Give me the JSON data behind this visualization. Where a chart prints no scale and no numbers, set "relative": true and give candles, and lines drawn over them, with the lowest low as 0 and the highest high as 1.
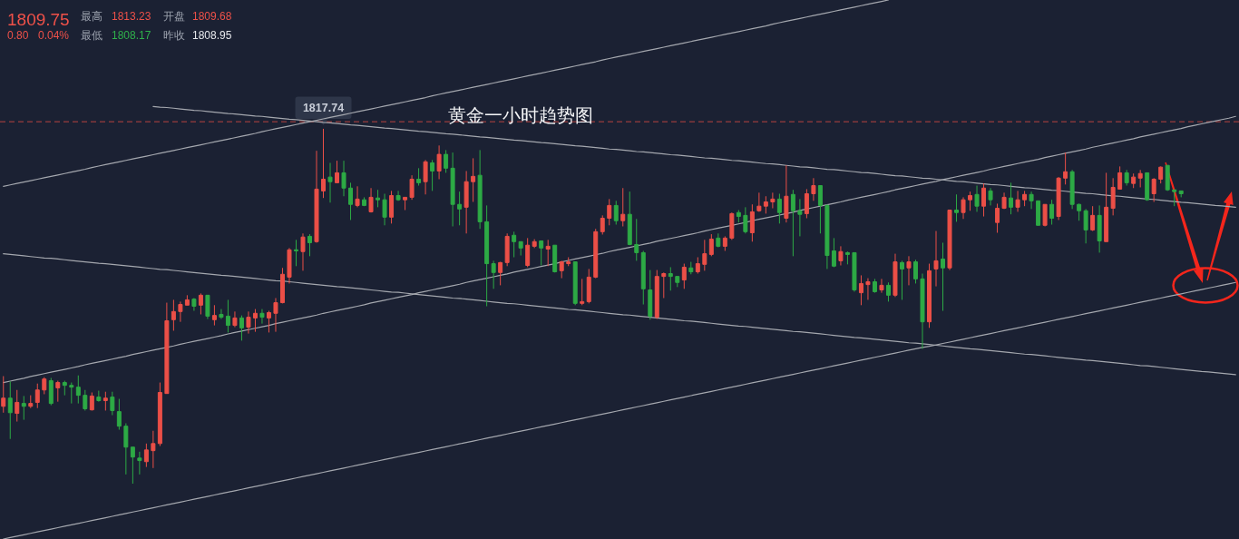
{
  "chart_data": {
    "type": "candlestick",
    "relative": true,
    "title": "黄金一小时趋势图",
    "categories": [
      null,
      null,
      null,
      null,
      null,
      null,
      null,
      null,
      null,
      null,
      null,
      null,
      null,
      null,
      null,
      null,
      null,
      null,
      null,
      null,
      null,
      null,
      null,
      null,
      null,
      null,
      null,
      null,
      null,
      null,
      null,
      null,
      null,
      null,
      null,
      null,
      null,
      null,
      null,
      null,
      null,
      null,
      null,
      null,
      null,
      null,
      null,
      null,
      null,
      null,
      null,
      null,
      null,
      null,
      null,
      null,
      null,
      null,
      null,
      null,
      null,
      null,
      null,
      null,
      null,
      null,
      null,
      null,
      null,
      null,
      null,
      null,
      null,
      null,
      null,
      null,
      null,
      null,
      null,
      null,
      null,
      null,
      null,
      null,
      null,
      null,
      null,
      null,
      null,
      null,
      null,
      null,
      null,
      null,
      null,
      null,
      null,
      null,
      null,
      null,
      null,
      null,
      null,
      null,
      null,
      null,
      null,
      null,
      null,
      null,
      null,
      null,
      null,
      null,
      null,
      null,
      null,
      null,
      null,
      null,
      null,
      null,
      null,
      null,
      null,
      null,
      null,
      null,
      null,
      null,
      null,
      null,
      null,
      null,
      null,
      null,
      null,
      null,
      null,
      null,
      null,
      null,
      null,
      null,
      null,
      null,
      null,
      null,
      null,
      null,
      null,
      null,
      null,
      null,
      null,
      null,
      null,
      null,
      null,
      null,
      null,
      null,
      null,
      null,
      null,
      null,
      null,
      null,
      null,
      null,
      null,
      null,
      null,
      null,
      null,
      null,
      null,
      null,
      null,
      null,
      null,
      null
    ],
    "ohlc": [
      [
        0.218,
        0.303,
        0.2,
        0.241
      ],
      [
        0.241,
        0.288,
        0.126,
        0.2
      ],
      [
        0.198,
        0.264,
        0.175,
        0.229
      ],
      [
        0.226,
        0.247,
        0.18,
        0.218
      ],
      [
        0.218,
        0.249,
        0.213,
        0.226
      ],
      [
        0.229,
        0.282,
        0.213,
        0.264
      ],
      [
        0.264,
        0.3,
        0.252,
        0.295
      ],
      [
        0.29,
        0.298,
        0.221,
        0.226
      ],
      [
        0.27,
        0.29,
        0.231,
        0.285
      ],
      [
        0.285,
        0.29,
        0.249,
        0.277
      ],
      [
        0.277,
        0.285,
        0.226,
        0.272
      ],
      [
        0.272,
        0.305,
        0.226,
        0.249
      ],
      [
        0.249,
        0.264,
        0.206,
        0.211
      ],
      [
        0.208,
        0.257,
        0.206,
        0.247
      ],
      [
        0.244,
        0.262,
        0.231,
        0.234
      ],
      [
        0.234,
        0.259,
        0.206,
        0.241
      ],
      [
        0.244,
        0.259,
        0.193,
        0.206
      ],
      [
        0.203,
        0.239,
        0.152,
        0.162
      ],
      [
        0.162,
        0.17,
        0.026,
        0.103
      ],
      [
        0.103,
        0.103,
        0,
        0.075
      ],
      [
        0.072,
        0.09,
        0.026,
        0.065
      ],
      [
        0.062,
        0.113,
        0.047,
        0.095
      ],
      [
        0.093,
        0.149,
        0.044,
        0.113
      ],
      [
        0.113,
        0.285,
        0.106,
        0.257
      ],
      [
        0.254,
        0.51,
        0.254,
        0.459
      ],
      [
        0.462,
        0.518,
        0.431,
        0.485
      ],
      [
        0.485,
        0.513,
        0.456,
        0.505
      ],
      [
        0.503,
        0.531,
        0.503,
        0.518
      ],
      [
        0.52,
        0.523,
        0.487,
        0.5
      ],
      [
        0.503,
        0.536,
        0.477,
        0.531
      ],
      [
        0.531,
        0.531,
        0.464,
        0.472
      ],
      [
        0.462,
        0.503,
        0.446,
        0.474
      ],
      [
        0.477,
        0.492,
        0.464,
        0.469
      ],
      [
        0.472,
        0.518,
        0.426,
        0.446
      ],
      [
        0.446,
        0.485,
        0.441,
        0.467
      ],
      [
        0.467,
        0.474,
        0.403,
        0.439
      ],
      [
        0.441,
        0.485,
        0.423,
        0.469
      ],
      [
        0.467,
        0.492,
        0.428,
        0.48
      ],
      [
        0.48,
        0.492,
        0.451,
        0.469
      ],
      [
        0.467,
        0.487,
        0.426,
        0.482
      ],
      [
        0.48,
        0.523,
        0.428,
        0.51
      ],
      [
        0.51,
        0.608,
        0.508,
        0.59
      ],
      [
        0.582,
        0.664,
        0.564,
        0.659
      ],
      [
        0.659,
        0.687,
        0.613,
        0.656
      ],
      [
        0.654,
        0.705,
        0.6,
        0.695
      ],
      [
        0.697,
        0.703,
        0.641,
        0.679
      ],
      [
        0.682,
        0.938,
        0.679,
        0.83
      ],
      [
        0.825,
        1,
        0.805,
        0.858
      ],
      [
        0.864,
        0.904,
        0.792,
        0.851
      ],
      [
        0.848,
        0.91,
        0.848,
        0.876
      ],
      [
        0.876,
        0.91,
        0.81,
        0.833
      ],
      [
        0.833,
        0.848,
        0.743,
        0.787
      ],
      [
        0.784,
        0.838,
        0.779,
        0.802
      ],
      [
        0.8,
        0.807,
        0.782,
        0.784
      ],
      [
        0.766,
        0.833,
        0.764,
        0.807
      ],
      [
        0.805,
        0.828,
        0.779,
        0.8
      ],
      [
        0.8,
        0.817,
        0.728,
        0.751
      ],
      [
        0.751,
        0.825,
        0.733,
        0.812
      ],
      [
        0.812,
        0.825,
        0.797,
        0.8
      ],
      [
        0.8,
        0.807,
        0.771,
        0.807
      ],
      [
        0.807,
        0.869,
        0.8,
        0.858
      ],
      [
        0.858,
        0.889,
        0.84,
        0.848
      ],
      [
        0.851,
        0.912,
        0.815,
        0.907
      ],
      [
        0.904,
        0.912,
        0.825,
        0.881
      ],
      [
        0.881,
        0.953,
        0.858,
        0.928
      ],
      [
        0.928,
        0.94,
        0.876,
        0.889
      ],
      [
        0.889,
        0.933,
        0.725,
        0.787
      ],
      [
        0.787,
        0.823,
        0.728,
        0.774
      ],
      [
        0.779,
        0.881,
        0.705,
        0.851
      ],
      [
        0.851,
        0.917,
        0.794,
        0.866
      ],
      [
        0.869,
        0.94,
        0.718,
        0.738
      ],
      [
        0.738,
        0.784,
        0.5,
        0.62
      ],
      [
        0.62,
        0.628,
        0.549,
        0.595
      ],
      [
        0.595,
        0.625,
        0.559,
        0.623
      ],
      [
        0.623,
        0.705,
        0.613,
        0.697
      ],
      [
        0.7,
        0.71,
        0.638,
        0.682
      ],
      [
        0.682,
        0.682,
        0.643,
        0.664
      ],
      [
        0.615,
        0.692,
        0.61,
        0.672
      ],
      [
        0.669,
        0.689,
        0.664,
        0.682
      ],
      [
        0.684,
        0.684,
        0.615,
        0.664
      ],
      [
        0.661,
        0.687,
        0.613,
        0.669
      ],
      [
        0.672,
        0.672,
        0.595,
        0.597
      ],
      [
        0.6,
        0.628,
        0.579,
        0.625
      ],
      [
        0.62,
        0.638,
        0.613,
        0.625
      ],
      [
        0.625,
        0.625,
        0.503,
        0.508
      ],
      [
        0.508,
        0.577,
        0.503,
        0.513
      ],
      [
        0.513,
        0.605,
        0.508,
        0.582
      ],
      [
        0.582,
        0.718,
        0.579,
        0.71
      ],
      [
        0.71,
        0.756,
        0.702,
        0.748
      ],
      [
        0.748,
        0.802,
        0.728,
        0.784
      ],
      [
        0.784,
        0.797,
        0.73,
        0.741
      ],
      [
        0.741,
        0.833,
        0.725,
        0.759
      ],
      [
        0.759,
        0.823,
        0.672,
        0.674
      ],
      [
        0.674,
        0.746,
        0.628,
        0.651
      ],
      [
        0.651,
        0.656,
        0.505,
        0.549
      ],
      [
        0.546,
        0.602,
        0.462,
        0.472
      ],
      [
        0.469,
        0.602,
        0.464,
        0.584
      ],
      [
        0.584,
        0.595,
        0.523,
        0.592
      ],
      [
        0.592,
        0.61,
        0.544,
        0.584
      ],
      [
        0.584,
        0.584,
        0.554,
        0.567
      ],
      [
        0.574,
        0.62,
        0.549,
        0.61
      ],
      [
        0.608,
        0.625,
        0.59,
        0.597
      ],
      [
        0.597,
        0.638,
        0.592,
        0.62
      ],
      [
        0.618,
        0.687,
        0.6,
        0.648
      ],
      [
        0.646,
        0.703,
        0.641,
        0.689
      ],
      [
        0.692,
        0.705,
        0.666,
        0.669
      ],
      [
        0.669,
        0.697,
        0.656,
        0.692
      ],
      [
        0.692,
        0.764,
        0.687,
        0.761
      ],
      [
        0.764,
        0.771,
        0.736,
        0.753
      ],
      [
        0.756,
        0.779,
        0.705,
        0.71
      ],
      [
        0.707,
        0.787,
        0.682,
        0.766
      ],
      [
        0.769,
        0.82,
        0.766,
        0.782
      ],
      [
        0.782,
        0.81,
        0.761,
        0.794
      ],
      [
        0.794,
        0.82,
        0.776,
        0.802
      ],
      [
        0.802,
        0.817,
        0.733,
        0.764
      ],
      [
        0.748,
        0.897,
        0.736,
        0.81
      ],
      [
        0.815,
        0.828,
        0.641,
        0.769
      ],
      [
        0.769,
        0.802,
        0.697,
        0.759
      ],
      [
        0.761,
        0.83,
        0.748,
        0.817
      ],
      [
        0.817,
        0.861,
        0.797,
        0.84
      ],
      [
        0.84,
        0.84,
        0.705,
        0.784
      ],
      [
        0.784,
        0.787,
        0.605,
        0.643
      ],
      [
        0.656,
        0.692,
        0.61,
        0.613
      ],
      [
        0.628,
        0.669,
        0.615,
        0.654
      ],
      [
        0.651,
        0.654,
        0.618,
        0.646
      ],
      [
        0.651,
        0.651,
        0.541,
        0.546
      ],
      [
        0.538,
        0.587,
        0.503,
        0.564
      ],
      [
        0.561,
        0.579,
        0.518,
        0.569
      ],
      [
        0.569,
        0.577,
        0.538,
        0.541
      ],
      [
        0.546,
        0.577,
        0.538,
        0.559
      ],
      [
        0.559,
        0.567,
        0.513,
        0.531
      ],
      [
        0.531,
        0.648,
        0.526,
        0.625
      ],
      [
        0.623,
        0.628,
        0.518,
        0.605
      ],
      [
        0.608,
        0.641,
        0.559,
        0.625
      ],
      [
        0.625,
        0.631,
        0.564,
        0.577
      ],
      [
        0.577,
        0.592,
        0.38,
        0.456
      ],
      [
        0.456,
        0.62,
        0.439,
        0.6
      ],
      [
        0.605,
        0.712,
        0.556,
        0.628
      ],
      [
        0.633,
        0.679,
        0.487,
        0.608
      ],
      [
        0.608,
        0.771,
        0.602,
        0.771
      ],
      [
        0.771,
        0.815,
        0.738,
        0.764
      ],
      [
        0.764,
        0.807,
        0.746,
        0.8
      ],
      [
        0.8,
        0.823,
        0.769,
        0.812
      ],
      [
        0.815,
        0.84,
        0.766,
        0.782
      ],
      [
        0.782,
        0.846,
        0.753,
        0.833
      ],
      [
        0.825,
        0.833,
        0.784,
        0.8
      ],
      [
        0.736,
        0.789,
        0.707,
        0.776
      ],
      [
        0.776,
        0.82,
        0.774,
        0.807
      ],
      [
        0.805,
        0.848,
        0.759,
        0.779
      ],
      [
        0.779,
        0.825,
        0.766,
        0.8
      ],
      [
        0.8,
        0.825,
        0.782,
        0.815
      ],
      [
        0.815,
        0.823,
        0.774,
        0.797
      ],
      [
        0.797,
        0.797,
        0.728,
        0.728
      ],
      [
        0.728,
        0.787,
        0.725,
        0.787
      ],
      [
        0.787,
        0.8,
        0.73,
        0.748
      ],
      [
        0.753,
        0.864,
        0.743,
        0.861
      ],
      [
        0.861,
        0.933,
        0.843,
        0.879
      ],
      [
        0.879,
        0.884,
        0.774,
        0.787
      ],
      [
        0.787,
        0.789,
        0.741,
        0.769
      ],
      [
        0.769,
        0.774,
        0.677,
        0.715
      ],
      [
        0.715,
        0.782,
        0.712,
        0.756
      ],
      [
        0.756,
        0.784,
        0.651,
        0.684
      ],
      [
        0.682,
        0.876,
        0.682,
        0.779
      ],
      [
        0.776,
        0.861,
        0.756,
        0.835
      ],
      [
        0.83,
        0.894,
        0.83,
        0.876
      ],
      [
        0.876,
        0.884,
        0.84,
        0.848
      ],
      [
        0.846,
        0.874,
        0.833,
        0.864
      ],
      [
        0.861,
        0.884,
        0.835,
        0.874
      ],
      [
        0.876,
        0.876,
        0.797,
        0.8
      ],
      [
        0.817,
        0.861,
        0.794,
        0.858
      ],
      [
        0.858,
        0.894,
        0.846,
        0.892
      ],
      [
        0.897,
        0.897,
        0.825,
        0.828
      ],
      [
        0.828,
        0.828,
        0.782,
        0.823
      ],
      [
        0.825,
        0.825,
        0.807,
        0.817
      ],
      null,
      null,
      null,
      null,
      null,
      null,
      null,
      null
    ],
    "colors": [
      "#eb4f47",
      "#2daa45",
      "#eb4f47",
      "#2daa45",
      "#eb4f47",
      "#eb4f47",
      "#eb4f47",
      "#2daa45",
      "#eb4f47",
      "#2daa45",
      "#2daa45",
      "#2daa45",
      "#2daa45",
      "#eb4f47",
      "#2daa45",
      "#eb4f47",
      "#2daa45",
      "#2daa45",
      "#2daa45",
      "#2daa45",
      "#2daa45",
      "#eb4f47",
      "#eb4f47",
      "#eb4f47",
      "#eb4f47",
      "#eb4f47",
      "#eb4f47",
      "#eb4f47",
      "#2daa45",
      "#eb4f47",
      "#2daa45",
      "#eb4f47",
      "#2daa45",
      "#2daa45",
      "#eb4f47",
      "#2daa45",
      "#eb4f47",
      "#eb4f47",
      "#2daa45",
      "#eb4f47",
      "#eb4f47",
      "#eb4f47",
      "#eb4f47",
      "#2daa45",
      "#eb4f47",
      "#2daa45",
      "#eb4f47",
      "#eb4f47",
      "#2daa45",
      "#eb4f47",
      "#2daa45",
      "#2daa45",
      "#eb4f47",
      "#2daa45",
      "#eb4f47",
      "#2daa45",
      "#2daa45",
      "#eb4f47",
      "#2daa45",
      "#eb4f47",
      "#eb4f47",
      "#2daa45",
      "#eb4f47",
      "#2daa45",
      "#eb4f47",
      "#2daa45",
      "#2daa45",
      "#2daa45",
      "#eb4f47",
      "#eb4f47",
      "#2daa45",
      "#2daa45",
      "#2daa45",
      "#eb4f47",
      "#eb4f47",
      "#2daa45",
      "#2daa45",
      "#eb4f47",
      "#eb4f47",
      "#2daa45",
      "#eb4f47",
      "#2daa45",
      "#eb4f47",
      "#eb4f47",
      "#2daa45",
      "#eb4f47",
      "#eb4f47",
      "#eb4f47",
      "#eb4f47",
      "#eb4f47",
      "#2daa45",
      "#eb4f47",
      "#2daa45",
      "#2daa45",
      "#2daa45",
      "#2daa45",
      "#eb4f47",
      "#eb4f47",
      "#2daa45",
      "#2daa45",
      "#eb4f47",
      "#2daa45",
      "#eb4f47",
      "#eb4f47",
      "#eb4f47",
      "#2daa45",
      "#eb4f47",
      "#eb4f47",
      "#2daa45",
      "#2daa45",
      "#eb4f47",
      "#eb4f47",
      "#eb4f47",
      "#eb4f47",
      "#2daa45",
      "#eb4f47",
      "#2daa45",
      "#2daa45",
      "#eb4f47",
      "#eb4f47",
      "#2daa45",
      "#2daa45",
      "#2daa45",
      "#eb4f47",
      "#2daa45",
      "#2daa45",
      "#eb4f47",
      "#eb4f47",
      "#2daa45",
      "#eb4f47",
      "#2daa45",
      "#eb4f47",
      "#2daa45",
      "#eb4f47",
      "#2daa45",
      "#2daa45",
      "#eb4f47",
      "#eb4f47",
      "#2daa45",
      "#eb4f47",
      "#2daa45",
      "#eb4f47",
      "#eb4f47",
      "#2daa45",
      "#eb4f47",
      "#2daa45",
      "#eb4f47",
      "#eb4f47",
      "#2daa45",
      "#eb4f47",
      "#eb4f47",
      "#2daa45",
      "#2daa45",
      "#eb4f47",
      "#2daa45",
      "#eb4f47",
      "#eb4f47",
      "#2daa45",
      "#2daa45",
      "#2daa45",
      "#eb4f47",
      "#2daa45",
      "#eb4f47",
      "#eb4f47",
      "#eb4f47",
      "#2daa45",
      "#eb4f47",
      "#eb4f47",
      "#2daa45",
      "#eb4f47",
      "#eb4f47",
      "#2daa45",
      "#2daa45",
      "#2daa45",
      null,
      null,
      null,
      null,
      null,
      null,
      null,
      null
    ],
    "series": [
      {
        "type": "line",
        "color": "#a4a7ae",
        "values": [
          0.838,
          0.842,
          0.846,
          0.85,
          0.854,
          0.858,
          0.862,
          0.866,
          0.87,
          0.874,
          0.878,
          0.882,
          0.886,
          0.891,
          0.895,
          0.899,
          0.903,
          0.907,
          0.911,
          0.915,
          0.919,
          0.923,
          0.927,
          0.931,
          0.935,
          0.939,
          0.943,
          0.947,
          0.951,
          0.955,
          0.959,
          0.963,
          0.967,
          0.971,
          0.975,
          0.979,
          0.983,
          0.987,
          0.992,
          0.996,
          1.0,
          1.004,
          1.008,
          1.012,
          1.016,
          1.02,
          1.024,
          1.028,
          1.032,
          1.036,
          1.04,
          1.044,
          1.048,
          1.052,
          1.056,
          1.06,
          1.064,
          1.068,
          1.072,
          1.076,
          1.08,
          1.084,
          1.088,
          1.093,
          1.097,
          1.101,
          1.105,
          1.109,
          1.113,
          1.117,
          1.121,
          1.125,
          1.129,
          1.133,
          1.137,
          1.141,
          1.145,
          1.149,
          1.153,
          1.157,
          1.161,
          1.165,
          1.169,
          1.173,
          1.177,
          1.181,
          1.185,
          1.189,
          1.194,
          1.198,
          1.202,
          1.206,
          1.21,
          1.214,
          1.218,
          1.222,
          1.226,
          1.23,
          1.234,
          1.238,
          1.242,
          1.246,
          1.25,
          1.254,
          1.258,
          1.262,
          1.266,
          1.27,
          1.274,
          1.278,
          1.282,
          1.286,
          1.29,
          1.295,
          1.299,
          1.303,
          1.307,
          1.311,
          1.315,
          1.319,
          1.323,
          1.327,
          1.331,
          1.335,
          1.339,
          1.343,
          1.347,
          1.351,
          1.355,
          1.359,
          1.363,
          null,
          null,
          null,
          null,
          null,
          null,
          null,
          null,
          null,
          null,
          null,
          null,
          null,
          null,
          null,
          null,
          null,
          null,
          null,
          null,
          null,
          null,
          null,
          null,
          null,
          null,
          null,
          null,
          null,
          null,
          null,
          null,
          null,
          null,
          null,
          null,
          null,
          null,
          null,
          null,
          null,
          null,
          null,
          null,
          null,
          null,
          null,
          null,
          null,
          null,
          null
        ]
      },
      {
        "type": "line",
        "color": "#a4a7ae",
        "values": [
          null,
          null,
          null,
          null,
          null,
          null,
          null,
          null,
          null,
          null,
          null,
          null,
          null,
          null,
          null,
          null,
          null,
          null,
          null,
          null,
          null,
          null,
          1.063,
          1.061,
          1.06,
          1.058,
          1.056,
          1.054,
          1.052,
          1.051,
          1.049,
          1.047,
          1.045,
          1.043,
          1.042,
          1.04,
          1.038,
          1.036,
          1.035,
          1.033,
          1.031,
          1.029,
          1.027,
          1.026,
          1.024,
          1.022,
          1.02,
          1.018,
          1.017,
          1.015,
          1.013,
          1.011,
          1.01,
          1.008,
          1.006,
          1.004,
          1.002,
          1.001,
          0.999,
          0.997,
          0.995,
          0.993,
          0.992,
          0.99,
          0.988,
          0.986,
          0.985,
          0.983,
          0.981,
          0.979,
          0.977,
          0.976,
          0.974,
          0.972,
          0.97,
          0.968,
          0.967,
          0.965,
          0.963,
          0.961,
          0.96,
          0.958,
          0.956,
          0.954,
          0.952,
          0.951,
          0.949,
          0.947,
          0.945,
          0.943,
          0.942,
          0.94,
          0.938,
          0.936,
          0.935,
          0.933,
          0.931,
          0.929,
          0.927,
          0.926,
          0.924,
          0.922,
          0.92,
          0.918,
          0.917,
          0.915,
          0.913,
          0.911,
          0.91,
          0.908,
          0.906,
          0.904,
          0.902,
          0.901,
          0.899,
          0.897,
          0.895,
          0.893,
          0.892,
          0.89,
          0.888,
          0.886,
          0.885,
          0.883,
          0.881,
          0.879,
          0.877,
          0.876,
          0.874,
          0.872,
          0.87,
          0.868,
          0.867,
          0.865,
          0.863,
          0.861,
          0.86,
          0.858,
          0.856,
          0.854,
          0.852,
          0.851,
          0.849,
          0.847,
          0.845,
          0.843,
          0.842,
          0.84,
          0.838,
          0.836,
          0.834,
          0.833,
          0.831,
          0.829,
          0.827,
          0.826,
          0.824,
          0.822,
          0.82,
          0.818,
          0.817,
          0.815,
          0.813,
          0.811,
          0.81,
          0.808,
          0.806,
          0.804,
          0.802,
          0.801,
          0.799,
          0.797,
          0.795,
          0.793,
          0.792,
          0.79,
          0.788,
          0.786,
          0.784,
          0.783,
          0.781,
          0.779
        ]
      },
      {
        "type": "line",
        "color": "#a4a7ae",
        "values": [
          0.648,
          0.646,
          0.644,
          0.642,
          0.64,
          0.638,
          0.636,
          0.635,
          0.633,
          0.631,
          0.629,
          0.627,
          0.625,
          0.623,
          0.621,
          0.62,
          0.618,
          0.616,
          0.614,
          0.612,
          0.61,
          0.608,
          0.606,
          0.604,
          0.603,
          0.601,
          0.599,
          0.597,
          0.595,
          0.593,
          0.591,
          0.589,
          0.587,
          0.586,
          0.584,
          0.582,
          0.58,
          0.578,
          0.576,
          0.574,
          0.572,
          0.571,
          0.569,
          0.567,
          0.565,
          0.563,
          0.561,
          0.559,
          0.557,
          0.555,
          0.554,
          0.552,
          0.55,
          0.548,
          0.546,
          0.544,
          0.542,
          0.54,
          0.539,
          0.537,
          0.535,
          0.533,
          0.531,
          0.529,
          0.527,
          0.525,
          0.523,
          0.522,
          0.52,
          0.518,
          0.516,
          0.514,
          0.512,
          0.51,
          0.508,
          0.507,
          0.505,
          0.503,
          0.501,
          0.499,
          0.497,
          0.495,
          0.493,
          0.491,
          0.49,
          0.488,
          0.486,
          0.484,
          0.482,
          0.48,
          0.478,
          0.476,
          0.475,
          0.473,
          0.471,
          0.469,
          0.467,
          0.465,
          0.463,
          0.461,
          0.459,
          0.458,
          0.456,
          0.454,
          0.452,
          0.45,
          0.448,
          0.446,
          0.444,
          0.443,
          0.441,
          0.439,
          0.437,
          0.435,
          0.433,
          0.431,
          0.429,
          0.428,
          0.426,
          0.424,
          0.422,
          0.42,
          0.418,
          0.416,
          0.414,
          0.412,
          0.411,
          0.409,
          0.407,
          0.405,
          0.403,
          0.401,
          0.399,
          0.397,
          0.396,
          0.394,
          0.392,
          0.39,
          0.388,
          0.386,
          0.384,
          0.382,
          0.38,
          0.379,
          0.377,
          0.375,
          0.373,
          0.371,
          0.369,
          0.367,
          0.365,
          0.364,
          0.362,
          0.36,
          0.358,
          0.356,
          0.354,
          0.352,
          0.35,
          0.348,
          0.347,
          0.345,
          0.343,
          0.341,
          0.339,
          0.337,
          0.335,
          0.333,
          0.332,
          0.33,
          0.328,
          0.326,
          0.324,
          0.322,
          0.32,
          0.318,
          0.316,
          0.315,
          0.313,
          0.311,
          0.309,
          0.307
        ]
      },
      {
        "type": "line",
        "color": "#a4a7ae",
        "values": [
          0.285,
          0.289,
          0.293,
          0.297,
          0.302,
          0.306,
          0.31,
          0.314,
          0.318,
          0.322,
          0.326,
          0.33,
          0.335,
          0.339,
          0.343,
          0.347,
          0.351,
          0.355,
          0.359,
          0.364,
          0.368,
          0.372,
          0.376,
          0.38,
          0.384,
          0.388,
          0.393,
          0.397,
          0.401,
          0.405,
          0.409,
          0.413,
          0.417,
          0.422,
          0.426,
          0.43,
          0.434,
          0.438,
          0.442,
          0.446,
          0.451,
          0.455,
          0.459,
          0.463,
          0.467,
          0.471,
          0.475,
          0.48,
          0.484,
          0.488,
          0.492,
          0.496,
          0.5,
          0.504,
          0.509,
          0.513,
          0.517,
          0.521,
          0.525,
          0.529,
          0.533,
          0.538,
          0.542,
          0.546,
          0.55,
          0.554,
          0.558,
          0.562,
          0.567,
          0.571,
          0.575,
          0.579,
          0.583,
          0.587,
          0.591,
          0.596,
          0.6,
          0.604,
          0.608,
          0.612,
          0.616,
          0.62,
          0.625,
          0.629,
          0.633,
          0.637,
          0.641,
          0.645,
          0.649,
          0.654,
          0.658,
          0.662,
          0.666,
          0.67,
          0.674,
          0.678,
          0.683,
          0.687,
          0.691,
          0.695,
          0.699,
          0.703,
          0.707,
          0.712,
          0.716,
          0.72,
          0.724,
          0.728,
          0.732,
          0.736,
          0.741,
          0.745,
          0.749,
          0.753,
          0.757,
          0.761,
          0.765,
          0.77,
          0.774,
          0.778,
          0.782,
          0.786,
          0.79,
          0.794,
          0.799,
          0.803,
          0.807,
          0.811,
          0.815,
          0.819,
          0.823,
          0.828,
          0.832,
          0.836,
          0.84,
          0.844,
          0.848,
          0.852,
          0.857,
          0.861,
          0.865,
          0.869,
          0.873,
          0.877,
          0.881,
          0.886,
          0.89,
          0.894,
          0.898,
          0.902,
          0.906,
          0.91,
          0.914,
          0.919,
          0.923,
          0.927,
          0.931,
          0.935,
          0.939,
          0.943,
          0.948,
          0.952,
          0.956,
          0.96,
          0.964,
          0.968,
          0.972,
          0.977,
          0.981,
          0.985,
          0.989,
          0.993,
          0.997,
          1.001,
          1.006,
          1.01,
          1.014,
          1.018,
          1.022,
          1.026,
          1.03,
          1.035
        ]
      },
      {
        "type": "line",
        "color": "#a4a7ae",
        "values": [
          -0.156,
          -0.152,
          -0.148,
          -0.144,
          -0.14,
          -0.136,
          -0.132,
          -0.128,
          -0.124,
          -0.12,
          -0.116,
          -0.112,
          -0.108,
          -0.104,
          -0.1,
          -0.096,
          -0.092,
          -0.088,
          -0.084,
          -0.08,
          -0.076,
          -0.072,
          -0.068,
          -0.064,
          -0.06,
          -0.056,
          -0.052,
          -0.048,
          -0.044,
          -0.04,
          -0.036,
          -0.032,
          -0.028,
          -0.024,
          -0.02,
          -0.016,
          -0.012,
          -0.008,
          -0.004,
          0,
          0.004,
          0.008,
          0.012,
          0.016,
          0.02,
          0.024,
          0.028,
          0.032,
          0.036,
          0.04,
          0.044,
          0.048,
          0.052,
          0.056,
          0.06,
          0.064,
          0.068,
          0.072,
          0.076,
          0.08,
          0.084,
          0.088,
          0.092,
          0.096,
          0.1,
          0.104,
          0.108,
          0.112,
          0.116,
          0.12,
          0.124,
          0.128,
          0.132,
          0.136,
          0.14,
          0.144,
          0.148,
          0.152,
          0.156,
          0.16,
          0.164,
          0.168,
          0.172,
          0.176,
          0.18,
          0.184,
          0.188,
          0.192,
          0.196,
          0.2,
          0.204,
          0.208,
          0.212,
          0.216,
          0.22,
          0.224,
          0.228,
          0.232,
          0.236,
          0.24,
          0.244,
          0.248,
          0.252,
          0.256,
          0.26,
          0.264,
          0.268,
          0.272,
          0.276,
          0.28,
          0.284,
          0.288,
          0.292,
          0.296,
          0.3,
          0.304,
          0.308,
          0.312,
          0.316,
          0.32,
          0.324,
          0.328,
          0.332,
          0.336,
          0.34,
          0.344,
          0.348,
          0.352,
          0.356,
          0.36,
          0.364,
          0.368,
          0.372,
          0.376,
          0.38,
          0.384,
          0.387,
          0.391,
          0.395,
          0.399,
          0.403,
          0.407,
          0.411,
          0.415,
          0.419,
          0.423,
          0.427,
          0.431,
          0.435,
          0.439,
          0.443,
          0.447,
          0.451,
          0.455,
          0.459,
          0.463,
          0.467,
          0.471,
          0.475,
          0.479,
          0.483,
          0.487,
          0.491,
          0.495,
          0.499,
          0.503,
          0.507,
          0.511,
          0.515,
          0.519,
          0.523,
          0.527,
          0.531,
          0.535,
          0.539,
          0.543,
          0.547,
          0.551,
          0.555,
          0.559,
          0.563,
          0.567
        ]
      }
    ],
    "ref_lines": [
      {
        "axis": "y",
        "value": 1.02,
        "color": "#b8433f",
        "line_style": "dashed"
      }
    ],
    "annotations": [
      "1809.75",
      "最高",
      "1813.23",
      "开盘",
      "1809.68",
      "0.80",
      "0.04%",
      "最低",
      "1808.17",
      "昨收",
      "1808.95",
      {
        "text": "1817.74",
        "y": 1
      }
    ]
  }
}
